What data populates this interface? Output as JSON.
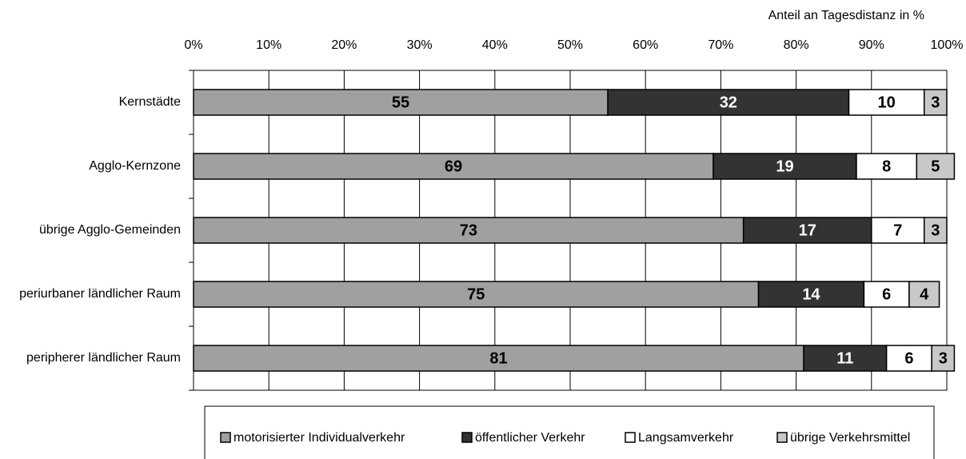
{
  "chart_data": {
    "type": "stacked-bar-horizontal",
    "x_axis_label": "Anteil an Tagesdistanz in %",
    "categories": [
      "Kernstädte",
      "Agglo-Kernzone",
      "übrige Agglo-Gemeinden",
      "periurbaner ländlicher Raum",
      "peripherer ländlicher Raum"
    ],
    "series": [
      {
        "name": "motorisierter Individualverkehr",
        "color": "#a0a0a0",
        "values": [
          55,
          69,
          73,
          75,
          81
        ]
      },
      {
        "name": "öffentlicher Verkehr",
        "color": "#333333",
        "values": [
          32,
          19,
          17,
          14,
          11
        ]
      },
      {
        "name": "Langsamverkehr",
        "color": "#ffffff",
        "values": [
          10,
          8,
          7,
          6,
          6
        ]
      },
      {
        "name": "übrige Verkehrsmittel",
        "color": "#c8c8c8",
        "values": [
          3,
          5,
          3,
          4,
          3
        ]
      }
    ],
    "xlim": [
      0,
      100
    ],
    "xticks": [
      {
        "value": 0,
        "label": "0%"
      },
      {
        "value": 10,
        "label": "10%"
      },
      {
        "value": 20,
        "label": "20%"
      },
      {
        "value": 30,
        "label": "30%"
      },
      {
        "value": 40,
        "label": "40%"
      },
      {
        "value": 50,
        "label": "50%"
      },
      {
        "value": 60,
        "label": "60%"
      },
      {
        "value": 70,
        "label": "70%"
      },
      {
        "value": 80,
        "label": "80%"
      },
      {
        "value": 90,
        "label": "90%"
      },
      {
        "value": 100,
        "label": "100%"
      }
    ],
    "grid": true,
    "legend": "bottom"
  }
}
